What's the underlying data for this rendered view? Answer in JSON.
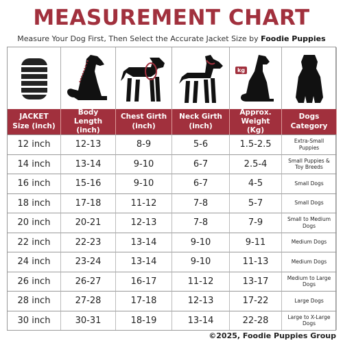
{
  "header": {
    "title": "MEASUREMENT CHART",
    "subtitle": "Measure Your Dog First, Then Select the Accurate Jacket Size by",
    "brand": "Foodie Puppies"
  },
  "icons": {
    "kg": "kg"
  },
  "table": {
    "columns": [
      "JACKET Size (inch)",
      "Body Length (inch)",
      "Chest Girth (inch)",
      "Neck Girth (inch)",
      "Approx. Weight (Kg)",
      "Dogs Category"
    ],
    "rows": [
      [
        "12 inch",
        "12-13",
        "8-9",
        "5-6",
        "1.5-2.5",
        "Extra-Small Puppies"
      ],
      [
        "14 inch",
        "13-14",
        "9-10",
        "6-7",
        "2.5-4",
        "Small Puppies & Toy Breeds"
      ],
      [
        "16 inch",
        "15-16",
        "9-10",
        "6-7",
        "4-5",
        "Small Dogs"
      ],
      [
        "18 inch",
        "17-18",
        "11-12",
        "7-8",
        "5-7",
        "Small Dogs"
      ],
      [
        "20 inch",
        "20-21",
        "12-13",
        "7-8",
        "7-9",
        "Small to Medium Dogs"
      ],
      [
        "22 inch",
        "22-23",
        "13-14",
        "9-10",
        "9-11",
        "Medium Dogs"
      ],
      [
        "24 inch",
        "23-24",
        "13-14",
        "9-10",
        "11-13",
        "Medium Dogs"
      ],
      [
        "26 inch",
        "26-27",
        "16-17",
        "11-12",
        "13-17",
        "Medium to Large Dogs"
      ],
      [
        "28 inch",
        "27-28",
        "17-18",
        "12-13",
        "17-22",
        "Large Dogs"
      ],
      [
        "30 inch",
        "30-31",
        "18-19",
        "13-14",
        "22-28",
        "Large to X-Large Dogs"
      ]
    ]
  },
  "footer": {
    "copyright": "©2025, Foodie Puppies Group"
  }
}
